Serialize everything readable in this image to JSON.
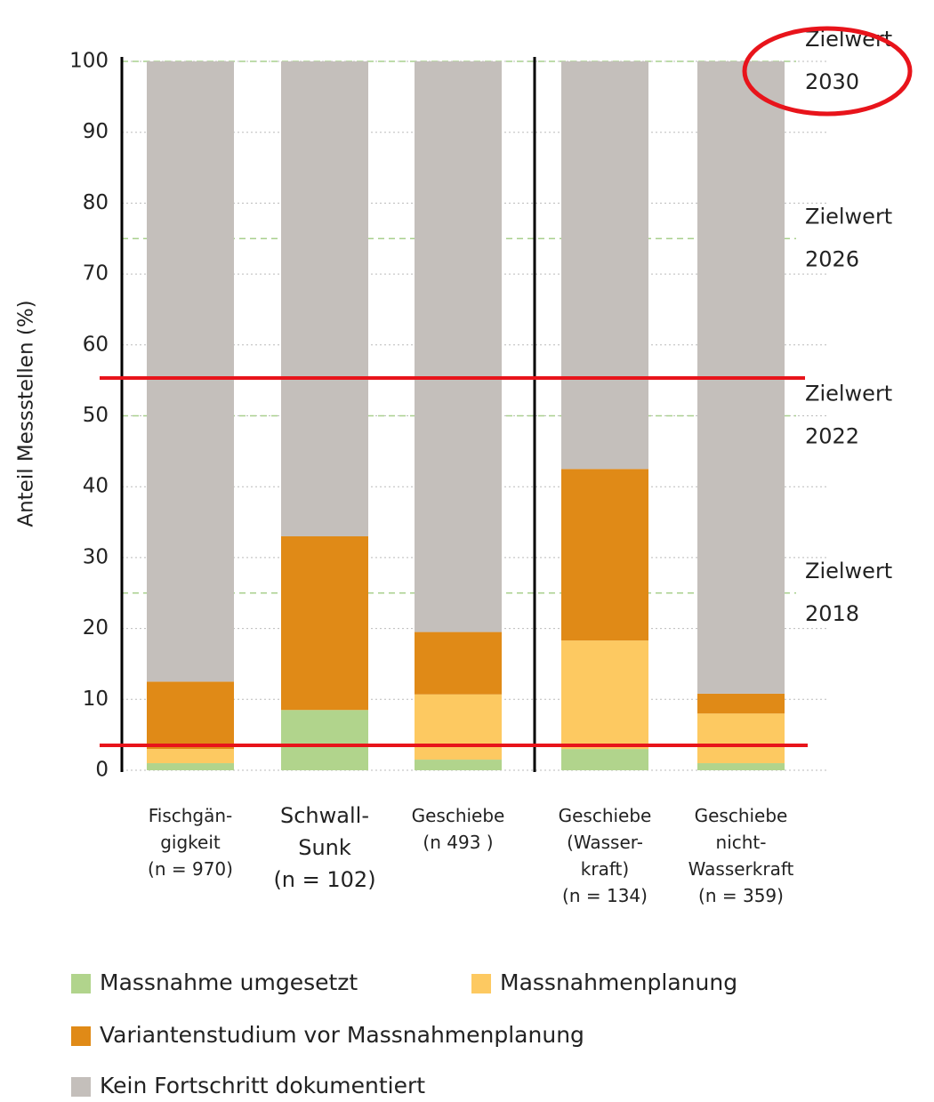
{
  "chart_data": {
    "type": "stacked_bar",
    "ylabel": "Anteil Messstellen (%)",
    "categories": [
      "Fischgän-\ngigkeit\n(n = 970)",
      "Schwall-\nSunk\n(n = 102)",
      "Geschiebe\n(n 493 )",
      "Geschiebe\n(Wasser-\nkraft)\n(n = 134)",
      "Geschiebe\nnicht-\nWasserkraft\n(n = 359)"
    ],
    "series": [
      {
        "name": "Massnahme umgesetzt",
        "color": "#b1d48c",
        "values": [
          1,
          8.5,
          1.5,
          3,
          1
        ]
      },
      {
        "name": "Massnahmenplanung",
        "color": "#fdc961",
        "values": [
          2,
          0,
          9.2,
          15.3,
          7
        ]
      },
      {
        "name": "Variantenstudium vor Massnahmenplanung",
        "color": "#e08a17",
        "values": [
          9.5,
          24.5,
          8.8,
          24.2,
          2.8
        ]
      },
      {
        "name": "Kein Fortschritt dokumentiert",
        "color": "#c4bfbb",
        "values": [
          87.5,
          67,
          80.5,
          57.5,
          89.2
        ]
      }
    ],
    "ylim": [
      0,
      100
    ],
    "yticks": [
      0,
      10,
      20,
      30,
      40,
      50,
      60,
      70,
      80,
      90,
      100
    ],
    "grid": true,
    "annotations": [
      {
        "label": "Zielwert",
        "year": "2030",
        "value": 100
      },
      {
        "label": "Zielwert",
        "year": "2026",
        "value": 75
      },
      {
        "label": "Zielwert",
        "year": "2022",
        "value": 50
      },
      {
        "label": "Zielwert",
        "year": "2018",
        "value": 25
      }
    ]
  }
}
